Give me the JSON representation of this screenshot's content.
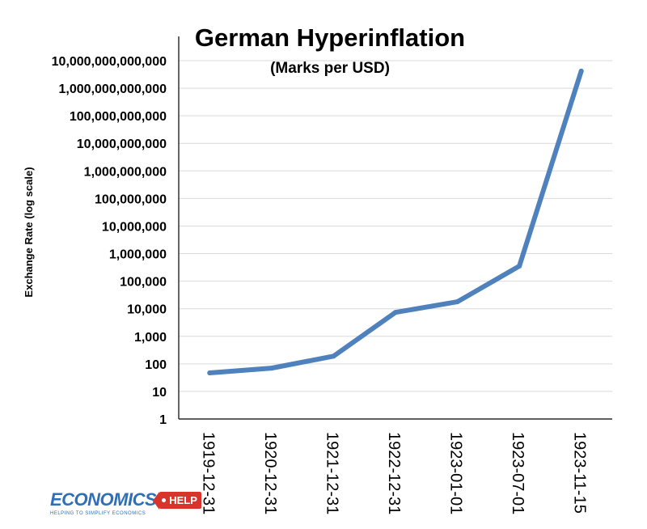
{
  "chart_data": {
    "type": "line",
    "title": "German Hyperinflation",
    "subtitle": "(Marks per USD)",
    "ylabel": "Exchange Rate (log scale)",
    "xlabel": "",
    "yscale": "log",
    "ylim": [
      1,
      10000000000000
    ],
    "grid": true,
    "legend": "none",
    "categories": [
      "1919-12-31",
      "1920-12-31",
      "1921-12-31",
      "1922-12-31",
      "1923-01-01",
      "1923-07-01",
      "1923-11-15"
    ],
    "yticks": [
      1,
      10,
      100,
      1000,
      10000,
      100000,
      1000000,
      10000000,
      100000000,
      1000000000,
      10000000000,
      100000000000,
      1000000000000,
      10000000000000
    ],
    "ytick_labels": [
      "1",
      "10",
      "100",
      "1,000",
      "10,000",
      "100,000",
      "1,000,000",
      "10,000,000",
      "100,000,000",
      "1,000,000,000",
      "10,000,000,000",
      "100,000,000,000",
      "1,000,000,000,000",
      "10,000,000,000,000"
    ],
    "series": [
      {
        "values": [
          47,
          70,
          190,
          7400,
          17900,
          353000,
          4200000000000
        ],
        "color": "#4f81bd"
      }
    ]
  },
  "logo": {
    "word": "ECONOMICS",
    "tag": "HELP",
    "slogan": "HELPING TO SIMPLIFY ECONOMICS",
    "word_color": "#2f6fb5",
    "tag_color": "#d9342b"
  }
}
